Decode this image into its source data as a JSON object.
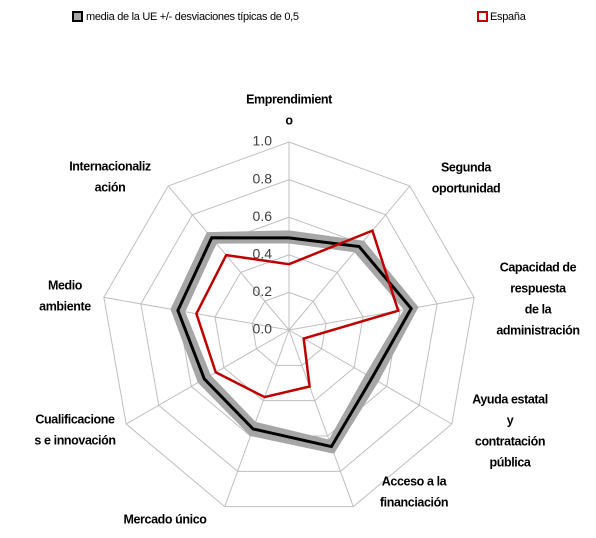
{
  "chart_data": {
    "type": "radar",
    "categories": [
      [
        "Emprendimient",
        "o"
      ],
      [
        "Segunda",
        "oportunidad"
      ],
      [
        "Capacidad de",
        "respuesta",
        "de la",
        "administración"
      ],
      [
        "Ayuda estatal",
        "y",
        "contratación",
        "pública"
      ],
      [
        "Acceso a la",
        "financiación"
      ],
      [
        "Mercado único"
      ],
      [
        "Cualificacione",
        "s e innovación"
      ],
      [
        "Medio",
        "ambiente"
      ],
      [
        "Internacionaliz",
        "ación"
      ]
    ],
    "series": [
      {
        "name": "media de la UE +/- desviaciones típicas de 0,5",
        "color": "#000000",
        "band_color": "#a6a6a6",
        "values": [
          0.49,
          0.58,
          0.66,
          0.51,
          0.66,
          0.56,
          0.52,
          0.6,
          0.64
        ],
        "lower": [
          0.46,
          0.54,
          0.62,
          0.47,
          0.62,
          0.52,
          0.48,
          0.56,
          0.6
        ],
        "upper": [
          0.53,
          0.62,
          0.7,
          0.55,
          0.7,
          0.6,
          0.56,
          0.64,
          0.68
        ]
      },
      {
        "name": "España",
        "color": "#c00000",
        "values": [
          0.35,
          0.69,
          0.59,
          0.09,
          0.32,
          0.38,
          0.45,
          0.5,
          0.52
        ]
      }
    ],
    "ylim": [
      0,
      1
    ],
    "yticks": [
      {
        "value": 0,
        "label": "0.0"
      },
      {
        "value": 0.2,
        "label": "0.2"
      },
      {
        "value": 0.4,
        "label": "0.4"
      },
      {
        "value": 0.6,
        "label": "0.6"
      },
      {
        "value": 0.8,
        "label": "0.8"
      },
      {
        "value": 1,
        "label": "1.0"
      }
    ],
    "grid": true
  }
}
